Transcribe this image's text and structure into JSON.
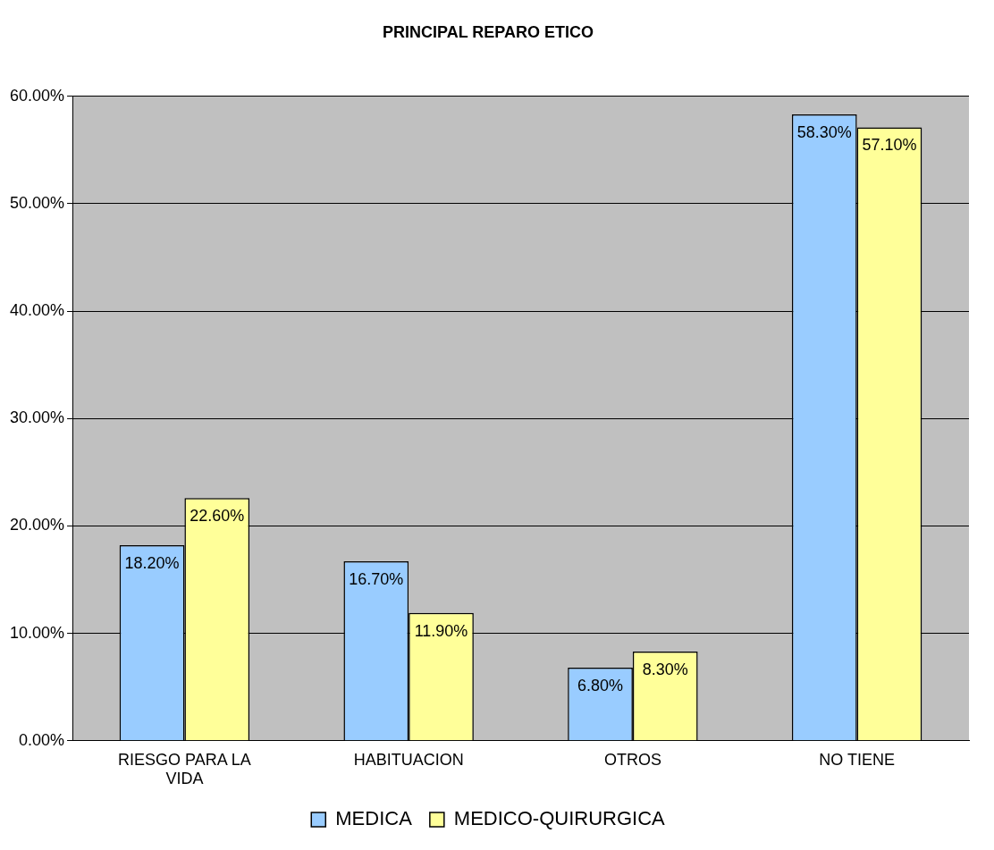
{
  "chart_data": {
    "type": "bar",
    "title": "PRINCIPAL REPARO ETICO",
    "categories": [
      "RIESGO PARA LA VIDA",
      "HABITUACION",
      "OTROS",
      "NO TIENE"
    ],
    "series": [
      {
        "name": "MEDICA",
        "color": "#99ccff",
        "values": [
          18.2,
          16.7,
          6.8,
          58.3
        ],
        "value_labels": [
          "18.20%",
          "16.70%",
          "6.80%",
          "58.30%"
        ]
      },
      {
        "name": "MEDICO-QUIRURGICA",
        "color": "#ffff99",
        "values": [
          22.6,
          11.9,
          8.3,
          57.1
        ],
        "value_labels": [
          "22.60%",
          "11.90%",
          "8.30%",
          "57.10%"
        ]
      }
    ],
    "ylim": [
      0,
      60
    ],
    "yticks": [
      {
        "value": 0,
        "label": "0.00%"
      },
      {
        "value": 10,
        "label": "10.00%"
      },
      {
        "value": 20,
        "label": "20.00%"
      },
      {
        "value": 30,
        "label": "30.00%"
      },
      {
        "value": 40,
        "label": "40.00%"
      },
      {
        "value": 50,
        "label": "50.00%"
      },
      {
        "value": 60,
        "label": "60.00%"
      }
    ],
    "grid": "y",
    "legend": "bottom"
  }
}
